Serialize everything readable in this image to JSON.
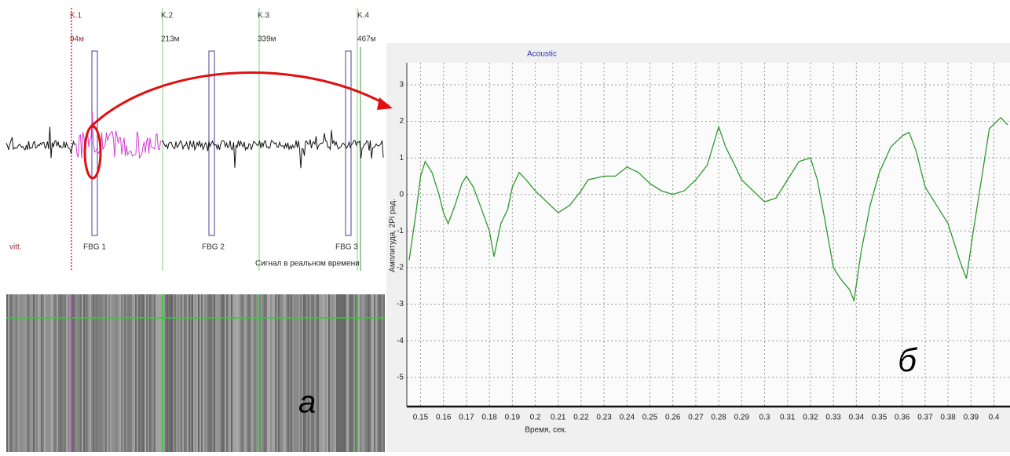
{
  "left_panel": {
    "markers": [
      {
        "label": "K.1",
        "distance": "94м"
      },
      {
        "label": "K.2",
        "distance": "213м"
      },
      {
        "label": "K.3",
        "distance": "339м"
      },
      {
        "label": "K.4",
        "distance": "467м"
      }
    ],
    "side_label": "vitt.",
    "fbg_labels": [
      "FBG 1",
      "FBG 2",
      "FBG 3"
    ],
    "caption": "Сигнал в реальном времени",
    "panel_letter": "а"
  },
  "chart_data": {
    "type": "line",
    "title": "Acoustic",
    "x_label": "Время, сек.",
    "y_label": "Амплитуда, 2Pi рад.",
    "annotation": "б",
    "xlim": [
      0.144,
      0.407
    ],
    "xticks": [
      0.15,
      0.16,
      0.17,
      0.18,
      0.19,
      0.2,
      0.21,
      0.22,
      0.23,
      0.24,
      0.25,
      0.26,
      0.27,
      0.28,
      0.29,
      0.3,
      0.31,
      0.32,
      0.33,
      0.34,
      0.35,
      0.36,
      0.37,
      0.38,
      0.39,
      0.4
    ],
    "ylim": [
      -5.8,
      3.6
    ],
    "yticks": [
      -5,
      -4,
      -3,
      -2,
      -1,
      0,
      1,
      2,
      3
    ],
    "grid": true,
    "series": [
      {
        "color": "#2e9a2e",
        "x": [
          0.145,
          0.148,
          0.15,
          0.152,
          0.155,
          0.158,
          0.16,
          0.162,
          0.165,
          0.168,
          0.17,
          0.173,
          0.176,
          0.18,
          0.182,
          0.185,
          0.188,
          0.19,
          0.193,
          0.196,
          0.2,
          0.205,
          0.21,
          0.215,
          0.22,
          0.223,
          0.23,
          0.235,
          0.24,
          0.245,
          0.25,
          0.255,
          0.26,
          0.265,
          0.27,
          0.275,
          0.28,
          0.283,
          0.287,
          0.29,
          0.295,
          0.3,
          0.305,
          0.31,
          0.315,
          0.32,
          0.323,
          0.326,
          0.33,
          0.333,
          0.337,
          0.339,
          0.342,
          0.346,
          0.35,
          0.355,
          0.36,
          0.363,
          0.366,
          0.37,
          0.375,
          0.38,
          0.385,
          0.388,
          0.391,
          0.395,
          0.398,
          0.403,
          0.406
        ],
        "values": [
          -1.8,
          -0.5,
          0.5,
          0.9,
          0.6,
          0.0,
          -0.5,
          -0.8,
          -0.3,
          0.3,
          0.5,
          0.2,
          -0.3,
          -1.0,
          -1.7,
          -0.8,
          -0.4,
          0.2,
          0.6,
          0.4,
          0.1,
          -0.2,
          -0.5,
          -0.3,
          0.1,
          0.4,
          0.5,
          0.5,
          0.75,
          0.6,
          0.3,
          0.1,
          0.0,
          0.1,
          0.4,
          0.8,
          1.85,
          1.3,
          0.8,
          0.4,
          0.1,
          -0.2,
          -0.1,
          0.4,
          0.9,
          1.0,
          0.4,
          -0.6,
          -2.0,
          -2.3,
          -2.6,
          -2.9,
          -1.6,
          -0.3,
          0.6,
          1.3,
          1.6,
          1.7,
          1.2,
          0.2,
          -0.3,
          -0.8,
          -1.8,
          -2.3,
          -1.0,
          0.6,
          1.8,
          2.1,
          1.9
        ]
      }
    ]
  }
}
